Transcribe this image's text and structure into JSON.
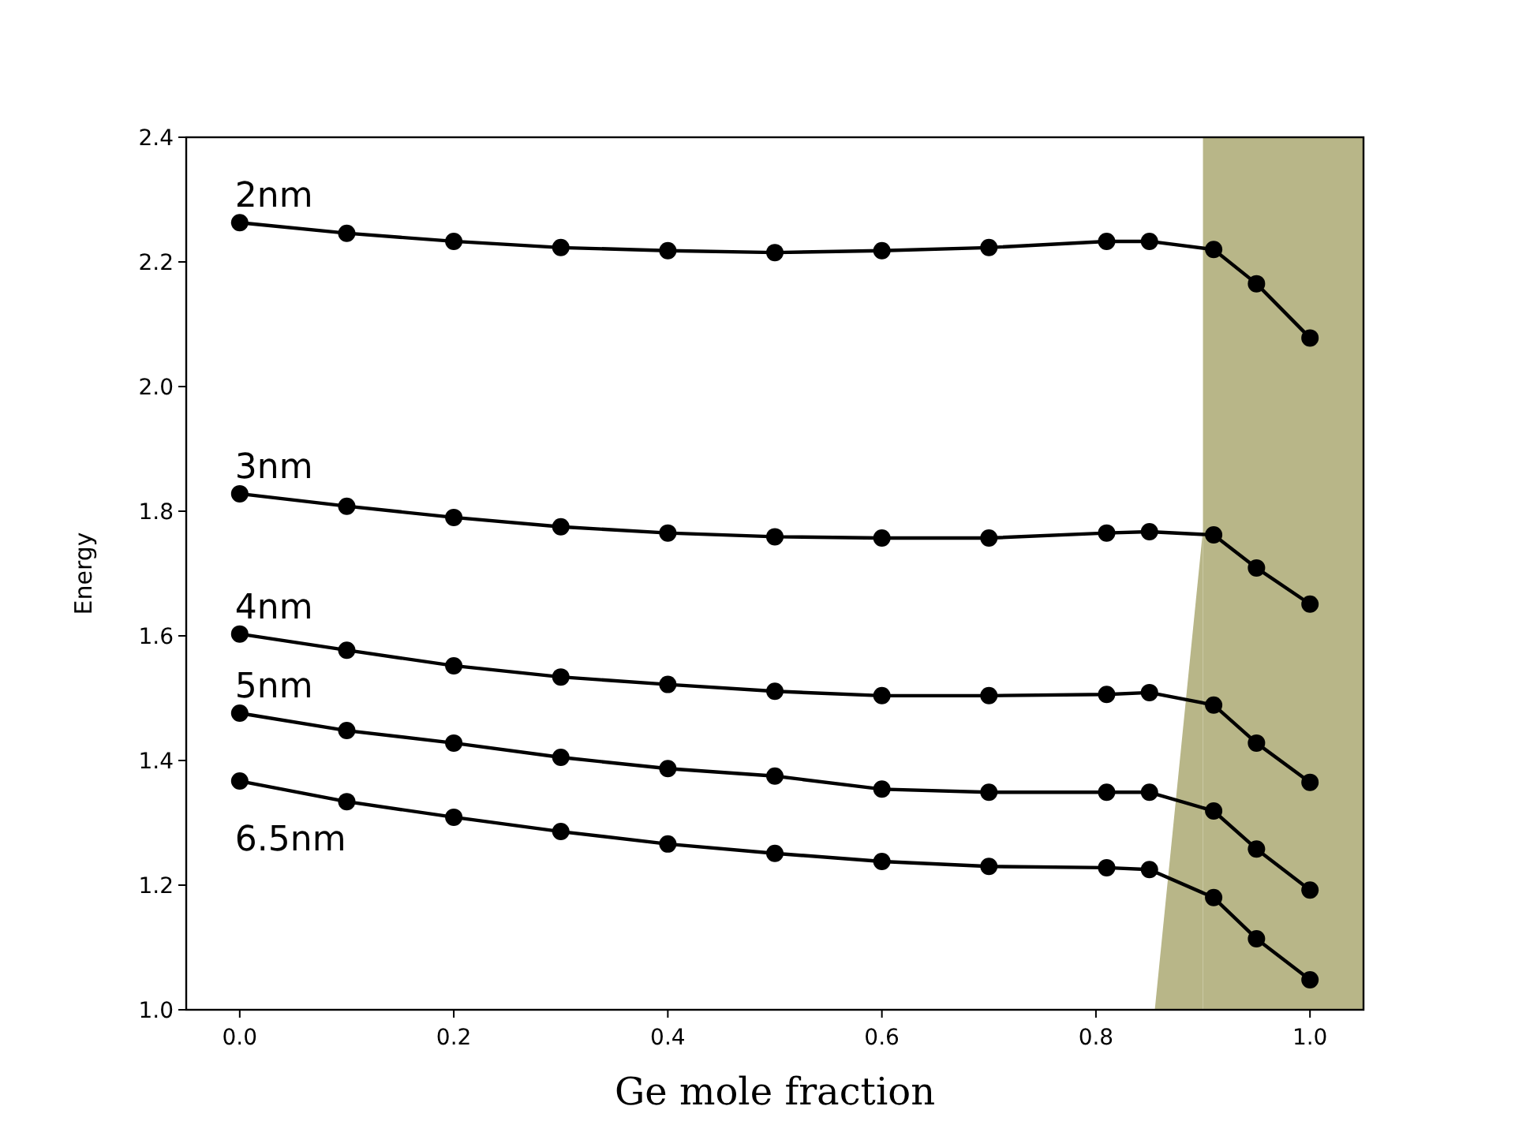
{
  "chart_data": {
    "type": "line",
    "xlabel": "Ge mole fraction",
    "ylabel": "Energy",
    "marker": "circle",
    "line_style": "solid",
    "xlim": [
      -0.05,
      1.05
    ],
    "ylim": [
      1.0,
      2.4
    ],
    "xticks": [
      {
        "value": 0,
        "label": "0.0"
      },
      {
        "value": 0.2,
        "label": "0.2"
      },
      {
        "value": 0.4,
        "label": "0.4"
      },
      {
        "value": 0.6,
        "label": "0.6"
      },
      {
        "value": 0.8,
        "label": "0.8"
      },
      {
        "value": 1,
        "label": "1.0"
      }
    ],
    "yticks": [
      {
        "value": 1,
        "label": "1.0"
      },
      {
        "value": 1.2,
        "label": "1.2"
      },
      {
        "value": 1.4,
        "label": "1.4"
      },
      {
        "value": 1.6,
        "label": "1.6"
      },
      {
        "value": 1.8,
        "label": "1.8"
      },
      {
        "value": 2,
        "label": "2.0"
      },
      {
        "value": 2.2,
        "label": "2.2"
      },
      {
        "value": 2.4,
        "label": "2.4"
      }
    ],
    "x": [
      0,
      0.1,
      0.2,
      0.3,
      0.4,
      0.5,
      0.6,
      0.7,
      0.81,
      0.85,
      0.91,
      0.95,
      1.0
    ],
    "bands": [
      {
        "axis": "x",
        "from": 0.9,
        "to": 1.05,
        "color": "#b8b688"
      }
    ],
    "series": [
      {
        "name": "2nm",
        "color": "#000000",
        "values": [
          2.263,
          2.246,
          2.233,
          2.223,
          2.218,
          2.215,
          2.218,
          2.223,
          2.233,
          2.233,
          2.22,
          2.165,
          2.078
        ]
      },
      {
        "name": "3nm",
        "color": "#000000",
        "values": [
          1.828,
          1.808,
          1.79,
          1.775,
          1.765,
          1.759,
          1.757,
          1.757,
          1.765,
          1.767,
          1.762,
          1.709,
          1.651
        ]
      },
      {
        "name": "4nm",
        "color": "#000000",
        "values": [
          1.603,
          1.577,
          1.552,
          1.534,
          1.522,
          1.511,
          1.504,
          1.504,
          1.506,
          1.509,
          1.489,
          1.428,
          1.365
        ]
      },
      {
        "name": "5nm",
        "color": "#000000",
        "values": [
          1.476,
          1.448,
          1.428,
          1.405,
          1.387,
          1.375,
          1.354,
          1.349,
          1.349,
          1.349,
          1.319,
          1.258,
          1.192
        ]
      },
      {
        "name": "6.5nm",
        "color": "#000000",
        "values": [
          1.367,
          1.334,
          1.309,
          1.286,
          1.266,
          1.251,
          1.238,
          1.23,
          1.228,
          1.225,
          1.18,
          1.114,
          1.048
        ]
      },
      {
        "type": "area",
        "color": "#b8b688",
        "marker": "none",
        "x": [
          0.855,
          0.9
        ],
        "values": [
          1.0,
          1.77
        ]
      }
    ]
  }
}
